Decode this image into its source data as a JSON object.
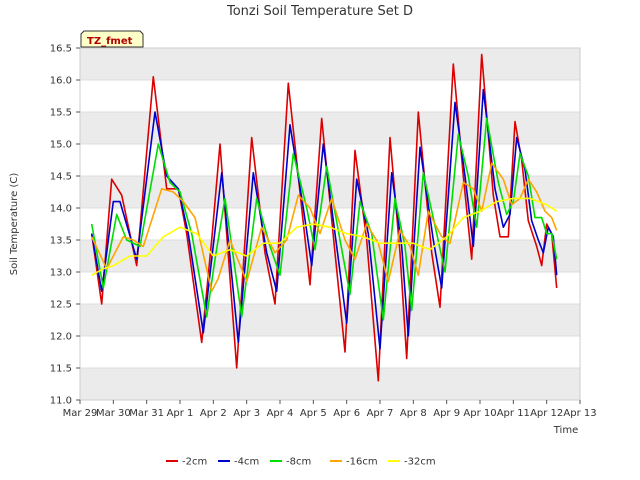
{
  "chart_data": {
    "type": "line",
    "title": "Tonzi Soil Temperature Set D",
    "xlabel": "Time",
    "ylabel": "Soil Temperature (C)",
    "tag": "TZ_fmet",
    "x_ticks": [
      "Mar 29",
      "Mar 30",
      "Mar 31",
      "Apr 1",
      "Apr 2",
      "Apr 3",
      "Apr 4",
      "Apr 5",
      "Apr 6",
      "Apr 7",
      "Apr 8",
      "Apr 9",
      "Apr 10",
      "Apr 11",
      "Apr 12",
      "Apr 13"
    ],
    "xlim_days": [
      0,
      15
    ],
    "ylim": [
      11.0,
      16.5
    ],
    "y_ticks": [
      "11.0",
      "11.5",
      "12.0",
      "12.5",
      "13.0",
      "13.5",
      "14.0",
      "14.5",
      "15.0",
      "15.5",
      "16.0",
      "16.5"
    ],
    "grid": "horizontal bands",
    "legend_position": "bottom",
    "series": [
      {
        "name": "-2cm",
        "color": "#dd0000",
        "points": [
          [
            0.35,
            13.6
          ],
          [
            0.65,
            12.5
          ],
          [
            0.95,
            14.45
          ],
          [
            1.25,
            14.2
          ],
          [
            1.7,
            13.1
          ],
          [
            2.2,
            16.05
          ],
          [
            2.6,
            14.3
          ],
          [
            2.95,
            14.3
          ],
          [
            3.2,
            13.6
          ],
          [
            3.65,
            11.9
          ],
          [
            3.95,
            13.5
          ],
          [
            4.2,
            15.0
          ],
          [
            4.7,
            11.5
          ],
          [
            5.15,
            15.1
          ],
          [
            5.55,
            13.3
          ],
          [
            5.85,
            12.5
          ],
          [
            6.25,
            15.95
          ],
          [
            6.65,
            14.0
          ],
          [
            6.9,
            12.8
          ],
          [
            7.25,
            15.4
          ],
          [
            7.65,
            13.3
          ],
          [
            7.95,
            11.75
          ],
          [
            8.25,
            14.9
          ],
          [
            8.6,
            13.5
          ],
          [
            8.95,
            11.3
          ],
          [
            9.3,
            15.1
          ],
          [
            9.6,
            13.3
          ],
          [
            9.8,
            11.65
          ],
          [
            10.15,
            15.5
          ],
          [
            10.55,
            13.3
          ],
          [
            10.8,
            12.45
          ],
          [
            11.2,
            16.25
          ],
          [
            11.5,
            14.5
          ],
          [
            11.75,
            13.2
          ],
          [
            12.05,
            16.4
          ],
          [
            12.4,
            14.2
          ],
          [
            12.6,
            13.55
          ],
          [
            12.85,
            13.55
          ],
          [
            13.05,
            15.35
          ],
          [
            13.25,
            14.75
          ],
          [
            13.45,
            13.8
          ],
          [
            13.7,
            13.4
          ],
          [
            13.85,
            13.1
          ],
          [
            14.0,
            13.75
          ],
          [
            14.15,
            13.6
          ],
          [
            14.3,
            12.75
          ]
        ]
      },
      {
        "name": "-4cm",
        "color": "#0000cc",
        "points": [
          [
            0.35,
            13.6
          ],
          [
            0.65,
            12.7
          ],
          [
            1.0,
            14.1
          ],
          [
            1.2,
            14.1
          ],
          [
            1.7,
            13.2
          ],
          [
            2.25,
            15.5
          ],
          [
            2.6,
            14.5
          ],
          [
            2.95,
            14.3
          ],
          [
            3.25,
            13.6
          ],
          [
            3.7,
            12.05
          ],
          [
            3.95,
            13.2
          ],
          [
            4.25,
            14.55
          ],
          [
            4.75,
            11.9
          ],
          [
            5.2,
            14.55
          ],
          [
            5.6,
            13.3
          ],
          [
            5.9,
            12.7
          ],
          [
            6.3,
            15.3
          ],
          [
            6.7,
            14.0
          ],
          [
            6.95,
            13.1
          ],
          [
            7.3,
            15.0
          ],
          [
            7.7,
            13.4
          ],
          [
            8.0,
            12.2
          ],
          [
            8.3,
            14.45
          ],
          [
            8.65,
            13.6
          ],
          [
            9.0,
            11.8
          ],
          [
            9.35,
            14.55
          ],
          [
            9.65,
            13.4
          ],
          [
            9.85,
            12.0
          ],
          [
            10.2,
            14.95
          ],
          [
            10.6,
            13.5
          ],
          [
            10.85,
            12.75
          ],
          [
            11.25,
            15.65
          ],
          [
            11.55,
            14.5
          ],
          [
            11.8,
            13.4
          ],
          [
            12.1,
            15.85
          ],
          [
            12.45,
            14.3
          ],
          [
            12.7,
            13.7
          ],
          [
            12.9,
            13.9
          ],
          [
            13.1,
            15.1
          ],
          [
            13.35,
            14.6
          ],
          [
            13.55,
            13.8
          ],
          [
            13.75,
            13.5
          ],
          [
            13.9,
            13.3
          ],
          [
            14.05,
            13.7
          ],
          [
            14.2,
            13.55
          ],
          [
            14.3,
            12.95
          ]
        ]
      },
      {
        "name": "-8cm",
        "color": "#00dd00",
        "points": [
          [
            0.35,
            13.75
          ],
          [
            0.7,
            12.75
          ],
          [
            1.1,
            13.9
          ],
          [
            1.4,
            13.5
          ],
          [
            1.8,
            13.4
          ],
          [
            2.35,
            15.0
          ],
          [
            2.7,
            14.4
          ],
          [
            3.0,
            14.25
          ],
          [
            3.35,
            13.6
          ],
          [
            3.8,
            12.3
          ],
          [
            4.05,
            13.2
          ],
          [
            4.35,
            14.15
          ],
          [
            4.85,
            12.3
          ],
          [
            5.3,
            14.15
          ],
          [
            5.7,
            13.4
          ],
          [
            6.0,
            12.95
          ],
          [
            6.4,
            14.85
          ],
          [
            6.8,
            14.0
          ],
          [
            7.05,
            13.35
          ],
          [
            7.4,
            14.65
          ],
          [
            7.8,
            13.5
          ],
          [
            8.1,
            12.65
          ],
          [
            8.4,
            14.1
          ],
          [
            8.75,
            13.6
          ],
          [
            9.1,
            12.25
          ],
          [
            9.45,
            14.15
          ],
          [
            9.75,
            13.4
          ],
          [
            9.95,
            12.4
          ],
          [
            10.3,
            14.55
          ],
          [
            10.7,
            13.6
          ],
          [
            10.95,
            13.0
          ],
          [
            11.35,
            15.15
          ],
          [
            11.65,
            14.5
          ],
          [
            11.9,
            13.7
          ],
          [
            12.2,
            15.4
          ],
          [
            12.55,
            14.4
          ],
          [
            12.8,
            13.9
          ],
          [
            13.0,
            14.1
          ],
          [
            13.2,
            14.85
          ],
          [
            13.45,
            14.5
          ],
          [
            13.65,
            13.85
          ],
          [
            13.85,
            13.85
          ],
          [
            14.0,
            13.6
          ],
          [
            14.15,
            13.6
          ],
          [
            14.3,
            13.2
          ]
        ]
      },
      {
        "name": "-16cm",
        "color": "#ffa500",
        "points": [
          [
            0.35,
            13.55
          ],
          [
            0.8,
            13.05
          ],
          [
            1.3,
            13.55
          ],
          [
            1.6,
            13.5
          ],
          [
            1.9,
            13.4
          ],
          [
            2.45,
            14.3
          ],
          [
            2.8,
            14.25
          ],
          [
            3.1,
            14.1
          ],
          [
            3.45,
            13.85
          ],
          [
            3.95,
            12.7
          ],
          [
            4.15,
            12.9
          ],
          [
            4.5,
            13.5
          ],
          [
            5.0,
            12.85
          ],
          [
            5.45,
            13.7
          ],
          [
            5.85,
            13.3
          ],
          [
            6.2,
            13.5
          ],
          [
            6.55,
            14.2
          ],
          [
            6.9,
            14.0
          ],
          [
            7.2,
            13.6
          ],
          [
            7.55,
            14.15
          ],
          [
            7.95,
            13.5
          ],
          [
            8.25,
            13.2
          ],
          [
            8.6,
            13.75
          ],
          [
            8.95,
            13.45
          ],
          [
            9.25,
            12.85
          ],
          [
            9.6,
            13.65
          ],
          [
            9.9,
            13.4
          ],
          [
            10.15,
            12.95
          ],
          [
            10.45,
            13.95
          ],
          [
            10.85,
            13.55
          ],
          [
            11.1,
            13.45
          ],
          [
            11.5,
            14.4
          ],
          [
            11.8,
            14.3
          ],
          [
            12.05,
            13.95
          ],
          [
            12.35,
            14.7
          ],
          [
            12.7,
            14.45
          ],
          [
            12.95,
            14.05
          ],
          [
            13.2,
            14.15
          ],
          [
            13.45,
            14.45
          ],
          [
            13.7,
            14.25
          ],
          [
            13.95,
            13.95
          ],
          [
            14.15,
            13.85
          ],
          [
            14.3,
            13.65
          ]
        ]
      },
      {
        "name": "-32cm",
        "color": "#ffff00",
        "points": [
          [
            0.35,
            12.95
          ],
          [
            0.7,
            13.05
          ],
          [
            1.0,
            13.1
          ],
          [
            1.5,
            13.25
          ],
          [
            2.0,
            13.25
          ],
          [
            2.5,
            13.55
          ],
          [
            3.0,
            13.7
          ],
          [
            3.5,
            13.6
          ],
          [
            4.0,
            13.25
          ],
          [
            4.5,
            13.35
          ],
          [
            5.0,
            13.25
          ],
          [
            5.5,
            13.45
          ],
          [
            6.0,
            13.45
          ],
          [
            6.5,
            13.7
          ],
          [
            7.0,
            13.75
          ],
          [
            7.5,
            13.7
          ],
          [
            8.0,
            13.6
          ],
          [
            8.5,
            13.55
          ],
          [
            9.0,
            13.45
          ],
          [
            9.5,
            13.45
          ],
          [
            10.0,
            13.45
          ],
          [
            10.5,
            13.35
          ],
          [
            11.0,
            13.55
          ],
          [
            11.5,
            13.85
          ],
          [
            12.0,
            13.95
          ],
          [
            12.5,
            14.1
          ],
          [
            13.0,
            14.15
          ],
          [
            13.5,
            14.15
          ],
          [
            14.0,
            14.05
          ],
          [
            14.3,
            13.95
          ]
        ]
      }
    ]
  }
}
